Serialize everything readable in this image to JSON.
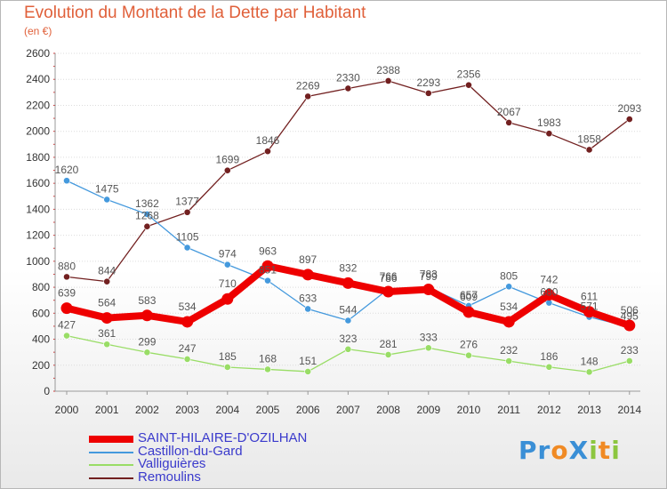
{
  "title": "Evolution du Montant de la Dette par Habitant",
  "subtitle": "(en €)",
  "logo": {
    "text": "ProXiti",
    "letters": [
      {
        "ch": "P",
        "color": "#3a8fd6"
      },
      {
        "ch": "r",
        "color": "#3a8fd6"
      },
      {
        "ch": "o",
        "color": "#f08a24"
      },
      {
        "ch": "X",
        "color": "#3a8fd6"
      },
      {
        "ch": "i",
        "color": "#8cc63f"
      },
      {
        "ch": "t",
        "color": "#f08a24"
      },
      {
        "ch": "i",
        "color": "#8cc63f"
      }
    ]
  },
  "chart_data": {
    "type": "line",
    "title": "Evolution du Montant de la Dette par Habitant",
    "subtitle": "(en €)",
    "xlabel": "",
    "ylabel": "",
    "x": [
      "2000",
      "2001",
      "2002",
      "2003",
      "2004",
      "2005",
      "2006",
      "2007",
      "2008",
      "2009",
      "2010",
      "2011",
      "2012",
      "2013",
      "2014"
    ],
    "ylim": [
      0,
      2600
    ],
    "yticks": [
      0,
      200,
      400,
      600,
      800,
      1000,
      1200,
      1400,
      1600,
      1800,
      2000,
      2200,
      2400,
      2600
    ],
    "grid": "horizontal",
    "legend": "bottom-left",
    "series": [
      {
        "name": "Remoulins",
        "color": "#722020",
        "values": [
          880,
          844,
          1268,
          1377,
          1699,
          1846,
          2269,
          2330,
          2388,
          2293,
          2356,
          2067,
          1983,
          1858,
          2093
        ]
      },
      {
        "name": "Valliguières",
        "color": "#99dd66",
        "values": [
          427,
          361,
          299,
          247,
          185,
          168,
          151,
          323,
          281,
          333,
          276,
          232,
          186,
          148,
          233
        ]
      },
      {
        "name": "Castillon-du-Gard",
        "color": "#4499dd",
        "values": [
          1620,
          1475,
          1362,
          1105,
          974,
          851,
          633,
          544,
          786,
          799,
          657,
          805,
          680,
          571,
          495
        ]
      },
      {
        "name": "SAINT-HILAIRE-D'OZILHAN",
        "color": "#ee0000",
        "values": [
          639,
          564,
          583,
          534,
          710,
          963,
          897,
          832,
          766,
          783,
          609,
          534,
          742,
          611,
          506
        ]
      }
    ]
  },
  "legend": [
    {
      "name": "SAINT-HILAIRE-D'OZILHAN",
      "color": "#ee0000"
    },
    {
      "name": "Castillon-du-Gard",
      "color": "#4499dd"
    },
    {
      "name": "Valliguières",
      "color": "#99dd66"
    },
    {
      "name": "Remoulins",
      "color": "#722020"
    }
  ]
}
